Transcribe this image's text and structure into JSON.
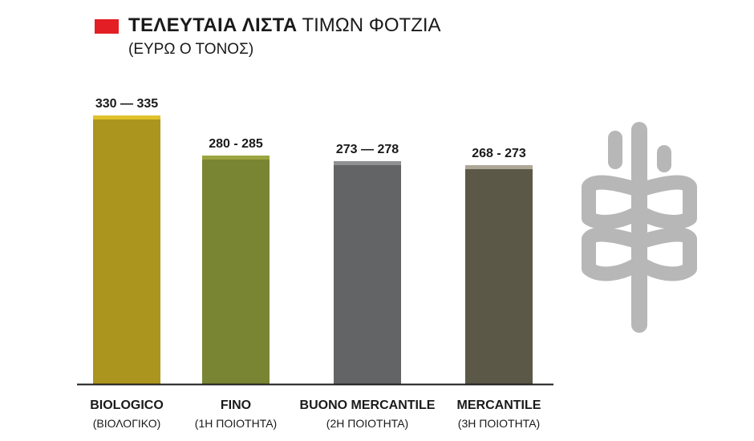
{
  "header": {
    "title_bold": "ΤΕΛΕΥΤΑΙΑ ΛΙΣΤΑ",
    "title_rest": "ΤΙΜΩΝ ΦΟΤΖΙΑ",
    "subtitle": "(ΕΥΡΩ Ο ΤΟΝΟΣ)",
    "marker_color": "#e31e24"
  },
  "decoration": {
    "icon": "wheat-icon",
    "color": "#b7b7b7"
  },
  "chart_data": {
    "type": "bar",
    "title": "ΤΕΛΕΥΤΑΙΑ ΛΙΣΤΑ ΤΙΜΩΝ ΦΟΤΖΙΑ",
    "subtitle": "(ΕΥΡΩ Ο ΤΟΝΟΣ)",
    "xlabel": "",
    "ylabel": "",
    "ylim": [
      0,
      340
    ],
    "grid": false,
    "categories": [
      "BIOLOGICO",
      "FINO",
      "BUONO MERCANTILE",
      "MERCANTILE"
    ],
    "category_sublabels": [
      "(ΒΙΟΛΟΓΙΚΟ)",
      "(1Η ΠΟΙΟΤΗΤΑ)",
      "(2Η ΠΟΙΟΤΗΤΑ)",
      "(3Η ΠΟΙΟΤΗΤΑ)"
    ],
    "ranges": [
      [
        330,
        335
      ],
      [
        280,
        285
      ],
      [
        273,
        278
      ],
      [
        268,
        273
      ]
    ],
    "range_labels": [
      "330 — 335",
      "280 - 285",
      "273 — 278",
      "268 - 273"
    ],
    "colors": [
      {
        "base": "#ab951f",
        "top": "#e0c12c"
      },
      {
        "base": "#7a8533",
        "top": "#9ca43f"
      },
      {
        "base": "#636466",
        "top": "#8f9092"
      },
      {
        "base": "#5b5848",
        "top": "#aea797"
      }
    ]
  }
}
